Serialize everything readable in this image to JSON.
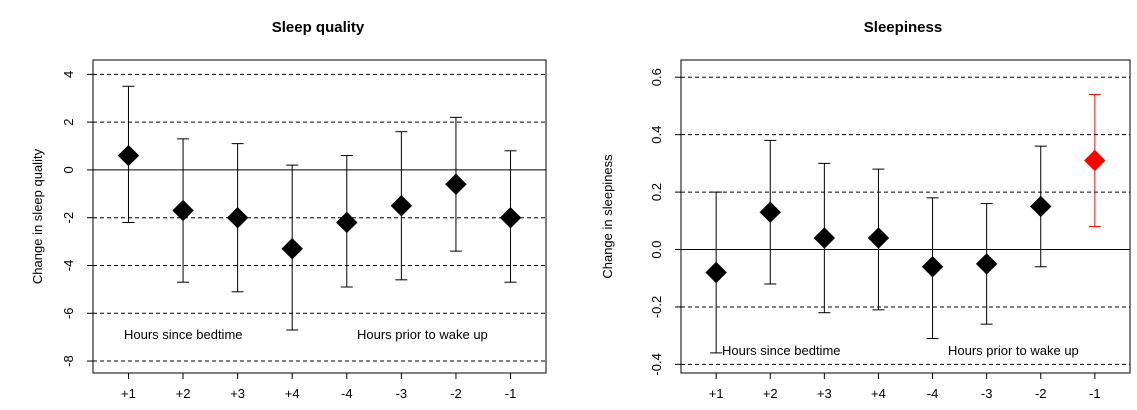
{
  "chart_data": [
    {
      "type": "scatter",
      "title": "Sleep quality",
      "ylabel": "Change in sleep quality",
      "xlabel": "",
      "categories": [
        "+1",
        "+2",
        "+3",
        "+4",
        "-4",
        "-3",
        "-2",
        "-1"
      ],
      "ylim": [
        -8.5,
        4.6
      ],
      "yticks": [
        "4",
        "2",
        "0",
        "-2",
        "-4",
        "-6",
        "-8"
      ],
      "ytick_values": [
        4,
        2,
        0,
        -2,
        -4,
        -6,
        -8
      ],
      "dashed_gridlines": [
        4,
        2,
        -2,
        -4,
        -6,
        -8
      ],
      "solid_reference_line": 0,
      "annotations": [
        "Hours since bedtime",
        "Hours prior to wake up"
      ],
      "series": [
        {
          "values": [
            0.6,
            -1.7,
            -2.0,
            -3.3,
            -2.2,
            -1.5,
            -0.6,
            -2.0
          ],
          "lower": [
            -2.2,
            -4.7,
            -5.1,
            -6.7,
            -4.9,
            -4.6,
            -3.4,
            -4.7
          ],
          "upper": [
            3.5,
            1.3,
            1.1,
            0.2,
            0.6,
            1.6,
            2.2,
            0.8
          ],
          "colors": [
            "#000000",
            "#000000",
            "#000000",
            "#000000",
            "#000000",
            "#000000",
            "#000000",
            "#000000"
          ]
        }
      ]
    },
    {
      "type": "scatter",
      "title": "Sleepiness",
      "ylabel": "Change in sleepiness",
      "xlabel": "",
      "categories": [
        "+1",
        "+2",
        "+3",
        "+4",
        "-4",
        "-3",
        "-2",
        "-1"
      ],
      "ylim": [
        -0.43,
        0.66
      ],
      "yticks": [
        "0.6",
        "0.4",
        "0.2",
        "0.0",
        "-0.2",
        "-0.4"
      ],
      "ytick_values": [
        0.6,
        0.4,
        0.2,
        0.0,
        -0.2,
        -0.4
      ],
      "dashed_gridlines": [
        0.6,
        0.4,
        0.2,
        -0.2,
        -0.4
      ],
      "solid_reference_line": 0,
      "annotations": [
        "Hours since bedtime",
        "Hours prior to wake up"
      ],
      "series": [
        {
          "values": [
            -0.08,
            0.13,
            0.04,
            0.04,
            -0.06,
            -0.05,
            0.15,
            0.31
          ],
          "lower": [
            -0.36,
            -0.12,
            -0.22,
            -0.21,
            -0.31,
            -0.26,
            -0.06,
            0.08
          ],
          "upper": [
            0.2,
            0.38,
            0.3,
            0.28,
            0.18,
            0.16,
            0.36,
            0.54
          ],
          "colors": [
            "#000000",
            "#000000",
            "#000000",
            "#000000",
            "#000000",
            "#000000",
            "#000000",
            "#ff0000"
          ]
        }
      ]
    }
  ]
}
